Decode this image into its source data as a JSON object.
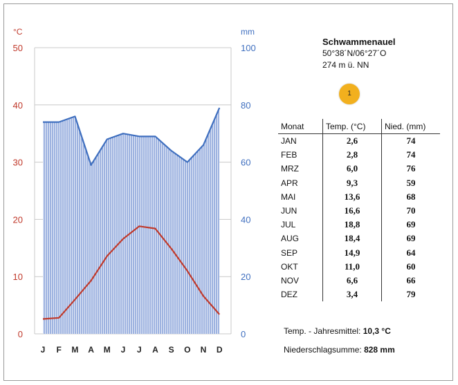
{
  "station": {
    "name": "Schwammenauel",
    "coords": "50°38´N/06°27´O",
    "elevation": "274 m ü. NN",
    "badge": "1"
  },
  "table": {
    "headers": [
      "Monat",
      "Temp. (°C)",
      "Nied. (mm)"
    ],
    "rows": [
      {
        "month": "JAN",
        "temp": "2,6",
        "precip": "74"
      },
      {
        "month": "FEB",
        "temp": "2,8",
        "precip": "74"
      },
      {
        "month": "MRZ",
        "temp": "6,0",
        "precip": "76"
      },
      {
        "month": "APR",
        "temp": "9,3",
        "precip": "59"
      },
      {
        "month": "MAI",
        "temp": "13,6",
        "precip": "68"
      },
      {
        "month": "JUN",
        "temp": "16,6",
        "precip": "70"
      },
      {
        "month": "JUL",
        "temp": "18,8",
        "precip": "69"
      },
      {
        "month": "AUG",
        "temp": "18,4",
        "precip": "69"
      },
      {
        "month": "SEP",
        "temp": "14,9",
        "precip": "64"
      },
      {
        "month": "OKT",
        "temp": "11,0",
        "precip": "60"
      },
      {
        "month": "NOV",
        "temp": "6,6",
        "precip": "66"
      },
      {
        "month": "DEZ",
        "temp": "3,4",
        "precip": "79"
      }
    ]
  },
  "summary": {
    "mean_label": "Temp. - Jahresmittel:",
    "mean_value": "10,3 °C",
    "sum_label": "Niederschlagsumme:",
    "sum_value": "828 mm"
  },
  "chart_data": {
    "type": "line",
    "categories": [
      "J",
      "F",
      "M",
      "A",
      "M",
      "J",
      "J",
      "A",
      "S",
      "O",
      "N",
      "D"
    ],
    "series": [
      {
        "name": "",
        "axis": "left",
        "values": [
          2.6,
          2.8,
          6.0,
          9.3,
          13.6,
          16.6,
          18.8,
          18.4,
          14.9,
          11.0,
          6.6,
          3.4
        ],
        "color": "#c0392b"
      },
      {
        "name": "",
        "axis": "right",
        "fill": "area-hatched",
        "values": [
          74,
          74,
          76,
          59,
          68,
          70,
          69,
          69,
          64,
          60,
          66,
          79
        ],
        "color": "#3f6fbf"
      }
    ],
    "y_left": {
      "label": "°C",
      "ylim": [
        0,
        50
      ],
      "ticks": [
        "0",
        "10",
        "20",
        "30",
        "40",
        "50"
      ],
      "color": "#c0392b"
    },
    "y_right": {
      "label": "mm",
      "ylim": [
        0,
        100
      ],
      "ticks": [
        "0",
        "20",
        "40",
        "60",
        "80",
        "100"
      ],
      "color": "#3f6fbf"
    },
    "grid": "horizontal",
    "legend": "none"
  }
}
